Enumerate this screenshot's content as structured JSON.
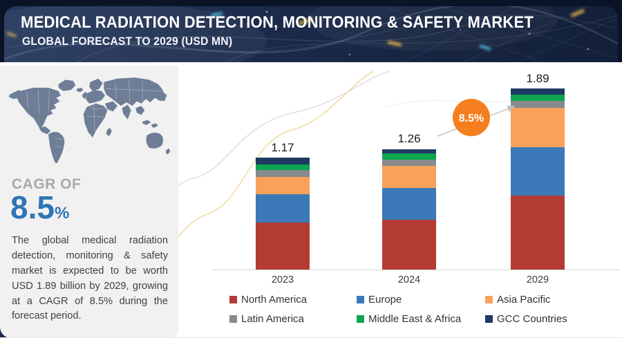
{
  "header": {
    "title": "MEDICAL RADIATION DETECTION, MONITORING & SAFETY MARKET",
    "subtitle": "GLOBAL FORECAST TO 2029 (USD MN)"
  },
  "sidebar": {
    "cagr_label": "CAGR OF",
    "cagr_value": "8.5",
    "cagr_unit": "%",
    "description": "The global medical radiation detection, monitoring & safety market is expected to be worth USD 1.89 billion by 2029, growing at a CAGR of 8.5% during the forecast period."
  },
  "chart_data": {
    "type": "bar",
    "stacked": true,
    "categories": [
      "2023",
      "2024",
      "2029"
    ],
    "totals": [
      "1.17",
      "1.26",
      "1.89"
    ],
    "series": [
      {
        "name": "North America",
        "color": "#b43b32",
        "values": [
          0.49,
          0.52,
          0.77
        ]
      },
      {
        "name": "Europe",
        "color": "#3b79b8",
        "values": [
          0.3,
          0.33,
          0.51
        ]
      },
      {
        "name": "Asia Pacific",
        "color": "#f9a159",
        "values": [
          0.18,
          0.23,
          0.41
        ]
      },
      {
        "name": "Latin America",
        "color": "#878a8d",
        "values": [
          0.07,
          0.065,
          0.07
        ]
      },
      {
        "name": "Middle East & Africa",
        "color": "#0da64f",
        "values": [
          0.06,
          0.065,
          0.065
        ]
      },
      {
        "name": "GCC Countries",
        "color": "#1f3a62",
        "values": [
          0.07,
          0.05,
          0.065
        ]
      }
    ],
    "annotation": {
      "label": "8.5%",
      "color": "#f57e1f"
    },
    "title": "Medical Radiation Detection, Monitoring & Safety Market, Global Forecast to 2029 (USD MN)",
    "xlabel": "",
    "ylabel": "",
    "legend_position": "bottom",
    "grid": false
  }
}
